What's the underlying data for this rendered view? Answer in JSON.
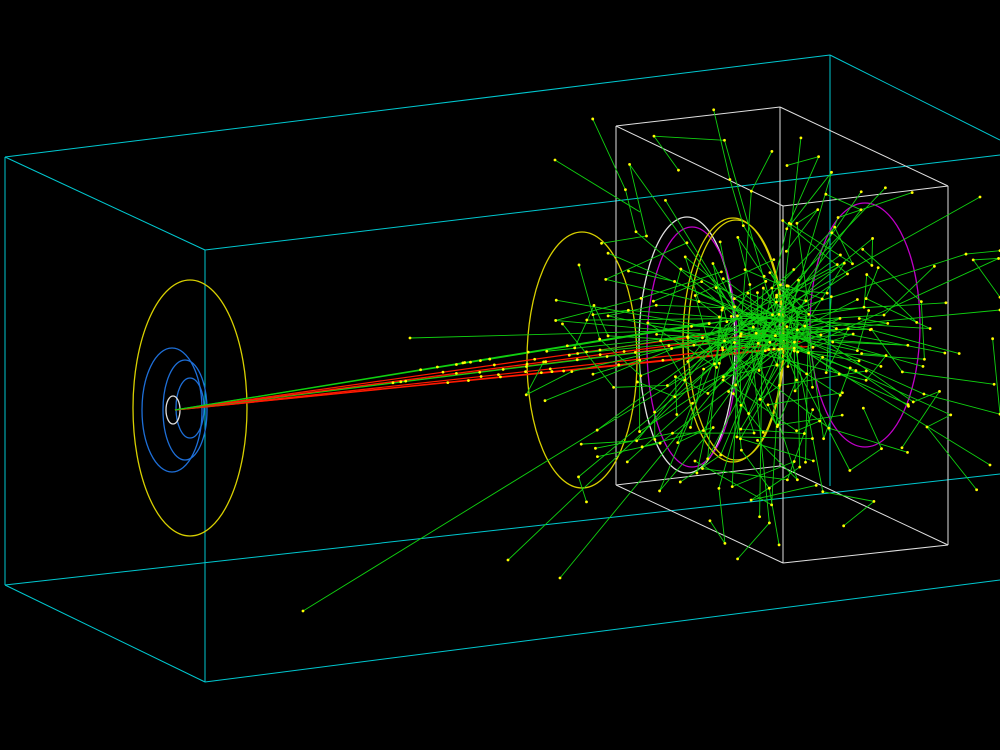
{
  "scene": {
    "background": "#000000",
    "colors": {
      "world_box": "#00c8d0",
      "detector_box": "#e0e0e0",
      "yellow_ring": "#d8d000",
      "blue_ring": "#1e6fd8",
      "magenta_ring": "#c000c8",
      "white_ring": "#e0e0e0",
      "primary_track": "#ff1a00",
      "secondary_track": "#10d010",
      "step_point": "#ffff00"
    }
  }
}
